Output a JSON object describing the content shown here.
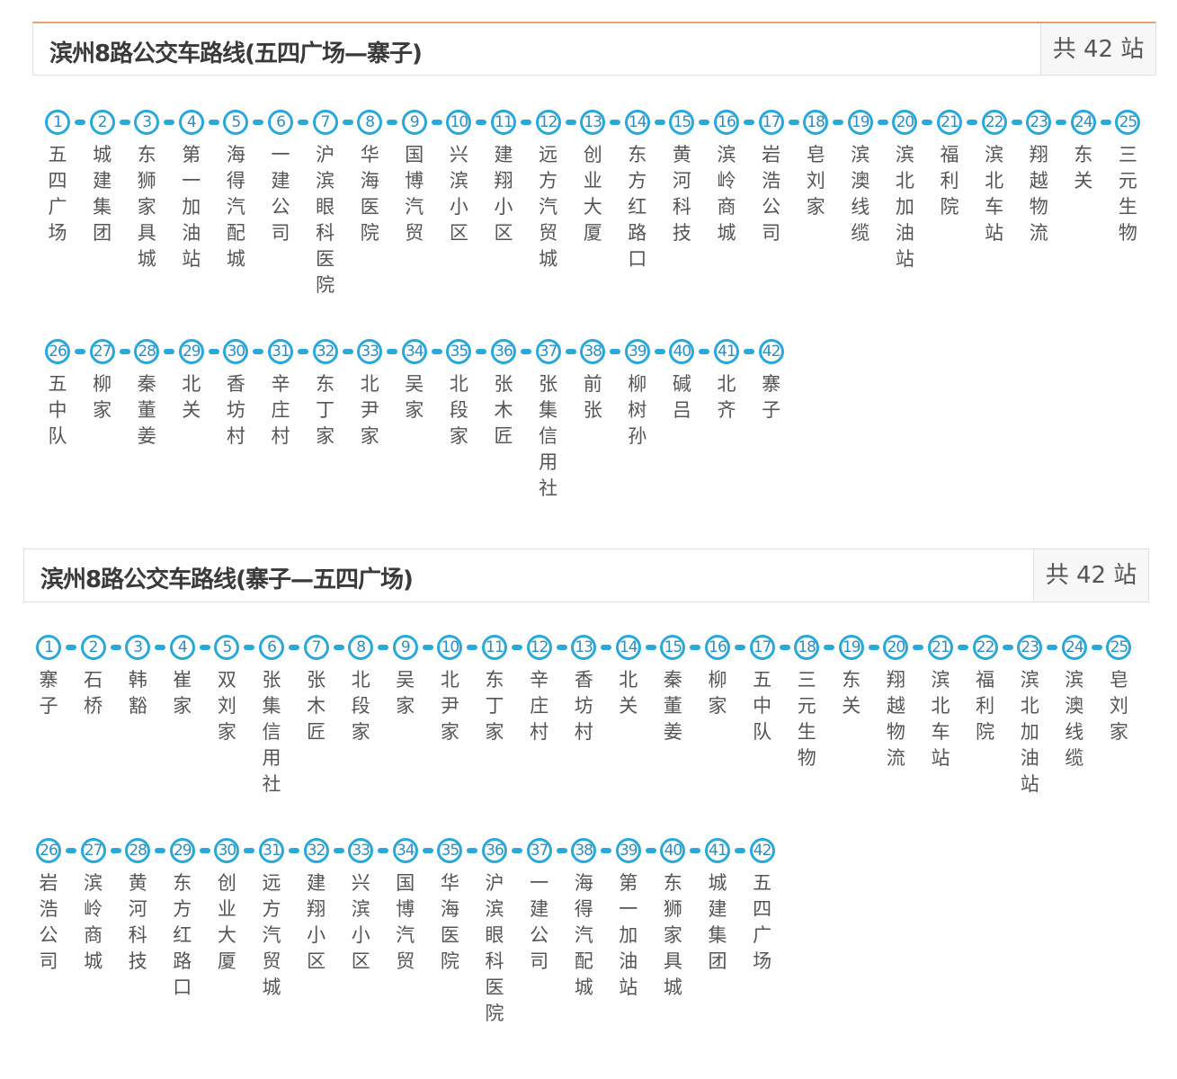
{
  "routes": [
    {
      "title": "滨州8路公交车路线(五四广场—寨子)",
      "count_label": "共 42 站",
      "stops": [
        {
          "num": "1",
          "name": "五四广场"
        },
        {
          "num": "2",
          "name": "城建集团"
        },
        {
          "num": "3",
          "name": "东狮家具城"
        },
        {
          "num": "4",
          "name": "第一加油站"
        },
        {
          "num": "5",
          "name": "海得汽配城"
        },
        {
          "num": "6",
          "name": "一建公司"
        },
        {
          "num": "7",
          "name": "沪滨眼科医院"
        },
        {
          "num": "8",
          "name": "华海医院"
        },
        {
          "num": "9",
          "name": "国博汽贸"
        },
        {
          "num": "10",
          "name": "兴滨小区"
        },
        {
          "num": "11",
          "name": "建翔小区"
        },
        {
          "num": "12",
          "name": "远方汽贸城"
        },
        {
          "num": "13",
          "name": "创业大厦"
        },
        {
          "num": "14",
          "name": "东方红路口"
        },
        {
          "num": "15",
          "name": "黄河科技"
        },
        {
          "num": "16",
          "name": "滨岭商城"
        },
        {
          "num": "17",
          "name": "岩浩公司"
        },
        {
          "num": "18",
          "name": "皂刘家"
        },
        {
          "num": "19",
          "name": "滨澳线缆"
        },
        {
          "num": "20",
          "name": "滨北加油站"
        },
        {
          "num": "21",
          "name": "福利院"
        },
        {
          "num": "22",
          "name": "滨北车站"
        },
        {
          "num": "23",
          "name": "翔越物流"
        },
        {
          "num": "24",
          "name": "东关"
        },
        {
          "num": "25",
          "name": "三元生物"
        },
        {
          "num": "26",
          "name": "五中队"
        },
        {
          "num": "27",
          "name": "柳家"
        },
        {
          "num": "28",
          "name": "秦董姜"
        },
        {
          "num": "29",
          "name": "北关"
        },
        {
          "num": "30",
          "name": "香坊村"
        },
        {
          "num": "31",
          "name": "辛庄村"
        },
        {
          "num": "32",
          "name": "东丁家"
        },
        {
          "num": "33",
          "name": "北尹家"
        },
        {
          "num": "34",
          "name": "吴家"
        },
        {
          "num": "35",
          "name": "北段家"
        },
        {
          "num": "36",
          "name": "张木匠"
        },
        {
          "num": "37",
          "name": "张集信用社"
        },
        {
          "num": "38",
          "name": "前张"
        },
        {
          "num": "39",
          "name": "柳树孙"
        },
        {
          "num": "40",
          "name": "碱吕"
        },
        {
          "num": "41",
          "name": "北齐"
        },
        {
          "num": "42",
          "name": "寨子"
        }
      ]
    },
    {
      "title": "滨州8路公交车路线(寨子—五四广场)",
      "count_label": "共 42 站",
      "stops": [
        {
          "num": "1",
          "name": "寨子"
        },
        {
          "num": "2",
          "name": "石桥"
        },
        {
          "num": "3",
          "name": "韩豁"
        },
        {
          "num": "4",
          "name": "崔家"
        },
        {
          "num": "5",
          "name": "双刘家"
        },
        {
          "num": "6",
          "name": "张集信用社"
        },
        {
          "num": "7",
          "name": "张木匠"
        },
        {
          "num": "8",
          "name": "北段家"
        },
        {
          "num": "9",
          "name": "吴家"
        },
        {
          "num": "10",
          "name": "北尹家"
        },
        {
          "num": "11",
          "name": "东丁家"
        },
        {
          "num": "12",
          "name": "辛庄村"
        },
        {
          "num": "13",
          "name": "香坊村"
        },
        {
          "num": "14",
          "name": "北关"
        },
        {
          "num": "15",
          "name": "秦董姜"
        },
        {
          "num": "16",
          "name": "柳家"
        },
        {
          "num": "17",
          "name": "五中队"
        },
        {
          "num": "18",
          "name": "三元生物"
        },
        {
          "num": "19",
          "name": "东关"
        },
        {
          "num": "20",
          "name": "翔越物流"
        },
        {
          "num": "21",
          "name": "滨北车站"
        },
        {
          "num": "22",
          "name": "福利院"
        },
        {
          "num": "23",
          "name": "滨北加油站"
        },
        {
          "num": "24",
          "name": "滨澳线缆"
        },
        {
          "num": "25",
          "name": "皂刘家"
        },
        {
          "num": "26",
          "name": "岩浩公司"
        },
        {
          "num": "27",
          "name": "滨岭商城"
        },
        {
          "num": "28",
          "name": "黄河科技"
        },
        {
          "num": "29",
          "name": "东方红路口"
        },
        {
          "num": "30",
          "name": "创业大厦"
        },
        {
          "num": "31",
          "name": "远方汽贸城"
        },
        {
          "num": "32",
          "name": "建翔小区"
        },
        {
          "num": "33",
          "name": "兴滨小区"
        },
        {
          "num": "34",
          "name": "国博汽贸"
        },
        {
          "num": "35",
          "name": "华海医院"
        },
        {
          "num": "36",
          "name": "沪滨眼科医院"
        },
        {
          "num": "37",
          "name": "一建公司"
        },
        {
          "num": "38",
          "name": "海得汽配城"
        },
        {
          "num": "39",
          "name": "第一加油站"
        },
        {
          "num": "40",
          "name": "东狮家具城"
        },
        {
          "num": "41",
          "name": "城建集团"
        },
        {
          "num": "42",
          "name": "五四广场"
        }
      ]
    }
  ]
}
